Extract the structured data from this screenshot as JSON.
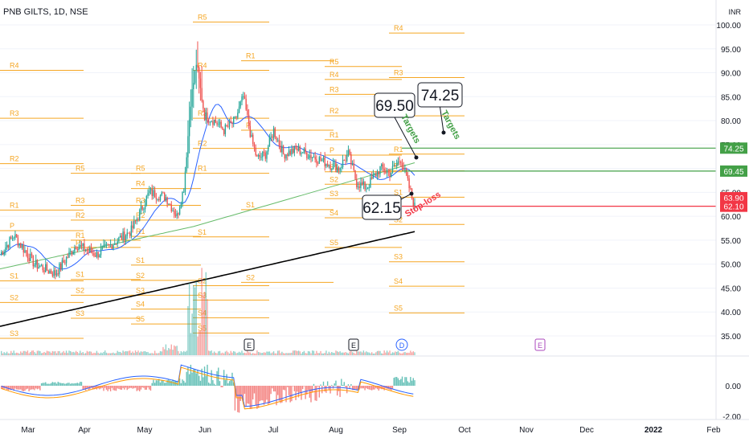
{
  "header": {
    "symbol_line": "PNB GILTS, 1D, NSE",
    "currency": "INR"
  },
  "chart_data": [
    {
      "type": "candlestick",
      "title": "PNB GILTS, 1D, NSE",
      "y_axis_ticks": [
        "100.00",
        "95.00",
        "90.00",
        "85.00",
        "80.00",
        "75.00",
        "70.00",
        "65.00",
        "60.00",
        "55.00",
        "50.00",
        "45.00",
        "40.00",
        "35.00"
      ],
      "y_range": [
        31,
        103
      ],
      "x_labels": [
        "Mar",
        "Apr",
        "May",
        "Jun",
        "Jul",
        "Aug",
        "Sep",
        "Oct",
        "Nov",
        "Dec",
        "2022",
        "Feb"
      ],
      "price_labels": [
        {
          "text": "74.25",
          "value": 74.25,
          "color": "#43a047"
        },
        {
          "text": "69.45",
          "value": 69.45,
          "color": "#43a047"
        },
        {
          "text": "63.90",
          "value": 63.9,
          "color": "#f23645"
        },
        {
          "text": "62.10",
          "value": 62.1,
          "color": "#f23645"
        }
      ],
      "horizontal_lines": [
        {
          "value": 74.25,
          "color": "#43a047"
        },
        {
          "value": 69.45,
          "color": "#43a047"
        },
        {
          "value": 62.1,
          "color": "#f23645"
        }
      ],
      "callouts": [
        {
          "text": "69.50",
          "value": 69.5
        },
        {
          "text": "74.25",
          "value": 74.25
        },
        {
          "text": "62.15",
          "value": 62.15
        }
      ],
      "annotations": [
        {
          "text": "Targets",
          "color": "#43a047"
        },
        {
          "text": "Targets",
          "color": "#43a047"
        },
        {
          "text": "Stop-loss",
          "color": "#f23645"
        }
      ],
      "event_markers": [
        "E",
        "E",
        "D",
        "E"
      ],
      "pivots": [
        {
          "period": "Feb",
          "levels": [
            {
              "label": "R4",
              "value": 90.5
            },
            {
              "label": "R3",
              "value": 80.5
            },
            {
              "label": "R2",
              "value": 71
            },
            {
              "label": "R1",
              "value": 61.3
            },
            {
              "label": "P",
              "value": 57
            },
            {
              "label": "S1",
              "value": 46.5
            },
            {
              "label": "S2",
              "value": 42
            },
            {
              "label": "S3",
              "value": 34.5
            }
          ]
        },
        {
          "period": "Mar",
          "levels": [
            {
              "label": "R1",
              "value": 55
            },
            {
              "label": "R5",
              "value": 69
            },
            {
              "label": "R2",
              "value": 59.2
            },
            {
              "label": "R3",
              "value": 62.3
            },
            {
              "label": "P",
              "value": 53.5
            },
            {
              "label": "S1",
              "value": 46.8
            },
            {
              "label": "S2",
              "value": 43.5
            },
            {
              "label": "S3",
              "value": 38.7
            }
          ]
        },
        {
          "period": "Apr",
          "levels": [
            {
              "label": "R5",
              "value": 69
            },
            {
              "label": "R4",
              "value": 65.8
            },
            {
              "label": "R3",
              "value": 62.3
            },
            {
              "label": "R2",
              "value": 59.2
            },
            {
              "label": "R1",
              "value": 55.8
            },
            {
              "label": "S1",
              "value": 49.8
            },
            {
              "label": "S2",
              "value": 46.6
            },
            {
              "label": "S3",
              "value": 43.5
            },
            {
              "label": "S4",
              "value": 40.6
            },
            {
              "label": "S5",
              "value": 37.5
            }
          ]
        },
        {
          "period": "May",
          "levels": [
            {
              "label": "R5",
              "value": 100.6
            },
            {
              "label": "R4",
              "value": 90.5
            },
            {
              "label": "R3",
              "value": 80.5
            },
            {
              "label": "R2",
              "value": 74.2
            },
            {
              "label": "R1",
              "value": 69
            },
            {
              "label": "S1",
              "value": 55.7
            },
            {
              "label": "S2",
              "value": 45.5
            },
            {
              "label": "S3",
              "value": 42.5
            },
            {
              "label": "S4",
              "value": 38.8
            },
            {
              "label": "S5",
              "value": 35.6
            }
          ]
        },
        {
          "period": "Jun",
          "levels": [
            {
              "label": "R1",
              "value": 92.5
            },
            {
              "label": "P",
              "value": 78
            },
            {
              "label": "S1",
              "value": 61.4
            },
            {
              "label": "S2",
              "value": 46.2
            }
          ]
        },
        {
          "period": "Jul",
          "levels": [
            {
              "label": "R5",
              "value": 91.3
            },
            {
              "label": "R4",
              "value": 88.6
            },
            {
              "label": "R3",
              "value": 85.5
            },
            {
              "label": "R2",
              "value": 81
            },
            {
              "label": "R1",
              "value": 76
            },
            {
              "label": "P",
              "value": 72.8
            },
            {
              "label": "S1",
              "value": 69.3
            },
            {
              "label": "S2",
              "value": 66.7
            },
            {
              "label": "S3",
              "value": 63.7
            },
            {
              "label": "S4",
              "value": 59.7
            },
            {
              "label": "S5",
              "value": 53.5
            }
          ]
        },
        {
          "period": "Aug",
          "levels": [
            {
              "label": "R4",
              "value": 98.3
            },
            {
              "label": "R3",
              "value": 89
            },
            {
              "label": "R2",
              "value": 81
            },
            {
              "label": "R1",
              "value": 73
            },
            {
              "label": "P",
              "value": 69.5
            },
            {
              "label": "S1",
              "value": 64
            },
            {
              "label": "S2",
              "value": 58.3
            },
            {
              "label": "S3",
              "value": 50.5
            },
            {
              "label": "S4",
              "value": 45.4
            },
            {
              "label": "S5",
              "value": 39.8
            }
          ]
        }
      ],
      "moving_averages": [
        {
          "color": "#2962ff"
        },
        {
          "color": "#66bb6a"
        },
        {
          "color": "#000000"
        }
      ]
    },
    {
      "type": "macd",
      "y_axis_ticks": [
        "0.00",
        "-2.00"
      ],
      "series": [
        {
          "color": "#2962ff"
        },
        {
          "color": "#ff9800"
        }
      ]
    }
  ]
}
